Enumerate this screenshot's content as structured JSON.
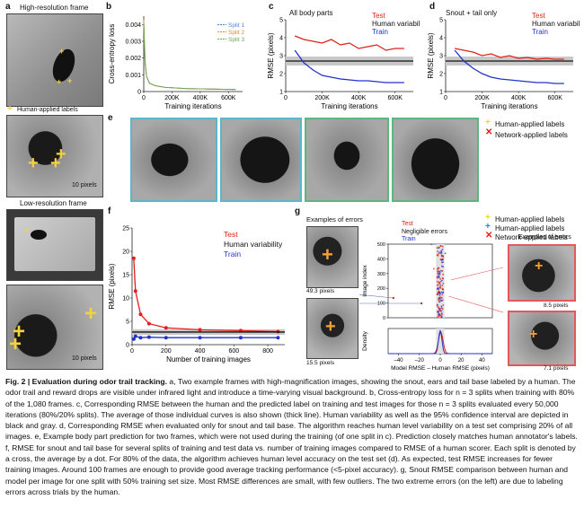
{
  "panel_a": {
    "letter": "a",
    "title_high": "High-resolution frame",
    "legend_human": "Human-applied labels",
    "scale_label_high": "10 pixels",
    "title_low": "Low-resolution frame",
    "scale_label_low": "10 pixels"
  },
  "panel_b": {
    "letter": "b"
  },
  "panel_c": {
    "letter": "c",
    "subtitle": "All body parts"
  },
  "panel_d": {
    "letter": "d",
    "subtitle": "Snout + tail only"
  },
  "panel_e": {
    "letter": "e",
    "legend_human": "Human-applied labels",
    "legend_network": "Network-applied labels"
  },
  "panel_f": {
    "letter": "f"
  },
  "panel_g": {
    "letter": "g",
    "examples_left": "Examples of errors",
    "examples_right": "Examples of errors",
    "err1": "49.3 pixels",
    "err2": "15.5 pixels",
    "err3": "8.5 pixels",
    "err4": "7.1 pixels",
    "legend_test": "Test",
    "legend_negligible": "Negligible errors",
    "legend_train": "Train",
    "ylabel_top": "Image index",
    "ylabel_bottom": "Density",
    "xlabel": "Model RMSE – Human RMSE (pixels)"
  },
  "legend_right": {
    "human": "Human-applied labels",
    "human2": "Human-applied labels",
    "network": "Network-applied labels"
  },
  "caption": {
    "heading": "Fig. 2 | Evaluation during odor trail tracking.",
    "body": " a, Two example frames with high-magnification images, showing the snout, ears and tail base labeled by a human. The odor trail and reward drops are visible under infrared light and introduce a time-varying visual background. b, Cross-entropy loss for n = 3 splits when training with 80% of the 1,080 frames. c, Corresponding RMSE between the human and the predicted label on training and test images for those n = 3 splits evaluated every 50,000 iterations (80%/20% splits). The average of those individual curves is also shown (thick line). Human variability as well as the 95% confidence interval are depicted in black and gray. d, Corresponding RMSE when evaluated only for snout and tail base. The algorithm reaches human level variability on a test set comprising 20% of all images. e, Example body part prediction for two frames, which were not used during the training (of one split in c). Prediction closely matches human annotator's labels. f, RMSE for snout and tail base for several splits of training and test data vs. number of training images compared to RMSE of a human scorer. Each split is denoted by a cross, the average by a dot. For 80% of the data, the algorithm achieves human level accuracy on the test set (d). As expected, test RMSE increases for fewer training images. Around 100 frames are enough to provide good average tracking performance (<5-pixel accuracy). g, Snout RMSE comparison between human and model per image for one split with 50% training set size. Most RMSE differences are small, with few outliers. The two extreme errors (on the left) are due to labeling errors across trials by the human."
  },
  "chart_data": [
    {
      "id": "b",
      "type": "line",
      "xlabel": "Training iterations",
      "ylabel": "Cross-entropy loss",
      "xlim": [
        0,
        700000
      ],
      "ylim": [
        0,
        0.0045
      ],
      "xticks": [
        "0",
        "200K",
        "400K",
        "600K"
      ],
      "yticks": [
        "0",
        "0.001",
        "0.002",
        "0.003",
        "0.004"
      ],
      "series": [
        {
          "name": "Split 1",
          "color": "#4f7fd8",
          "x": [
            0,
            5000,
            10000,
            20000,
            40000,
            80000,
            150000,
            300000,
            650000
          ],
          "y": [
            0.0042,
            0.0028,
            0.0017,
            0.0009,
            0.0005,
            0.00035,
            0.00025,
            0.00018,
            0.00012
          ]
        },
        {
          "name": "Split 2",
          "color": "#e08a2a",
          "x": [
            0,
            5000,
            10000,
            20000,
            40000,
            80000,
            150000,
            300000,
            650000
          ],
          "y": [
            0.0043,
            0.0029,
            0.0018,
            0.0009,
            0.0005,
            0.00035,
            0.00025,
            0.00018,
            0.00012
          ]
        },
        {
          "name": "Split 3",
          "color": "#6aa84f",
          "x": [
            0,
            5000,
            10000,
            20000,
            40000,
            80000,
            150000,
            300000,
            650000
          ],
          "y": [
            0.0041,
            0.0027,
            0.0016,
            0.0009,
            0.0005,
            0.00035,
            0.00025,
            0.00018,
            0.00012
          ]
        }
      ]
    },
    {
      "id": "c",
      "type": "line",
      "xlabel": "Training iterations",
      "ylabel": "RMSE (pixels)",
      "xlim": [
        0,
        700000
      ],
      "ylim": [
        1,
        5
      ],
      "xticks": [
        "0",
        "200K",
        "400K",
        "600K"
      ],
      "yticks": [
        "1",
        "2",
        "3",
        "4",
        "5"
      ],
      "human_variability": 2.7,
      "series": [
        {
          "name": "Test",
          "color": "#e0201b",
          "x": [
            50000,
            100000,
            150000,
            200000,
            250000,
            300000,
            350000,
            400000,
            450000,
            500000,
            550000,
            600000,
            650000
          ],
          "y": [
            4.1,
            3.9,
            3.8,
            3.7,
            3.9,
            3.6,
            3.7,
            3.4,
            3.5,
            3.6,
            3.3,
            3.4,
            3.4
          ]
        },
        {
          "name": "Human variability",
          "color": "#111111",
          "x": [
            0,
            700000
          ],
          "y": [
            2.7,
            2.7
          ]
        },
        {
          "name": "Train",
          "color": "#2233cc",
          "x": [
            50000,
            100000,
            150000,
            200000,
            250000,
            300000,
            350000,
            400000,
            450000,
            500000,
            550000,
            600000,
            650000
          ],
          "y": [
            3.3,
            2.6,
            2.2,
            1.9,
            1.8,
            1.7,
            1.65,
            1.6,
            1.6,
            1.55,
            1.5,
            1.5,
            1.5
          ]
        }
      ]
    },
    {
      "id": "d",
      "type": "line",
      "xlabel": "Training iterations",
      "ylabel": "RMSE (pixels)",
      "xlim": [
        0,
        700000
      ],
      "ylim": [
        1,
        5
      ],
      "xticks": [
        "0",
        "200K",
        "400K",
        "600K"
      ],
      "yticks": [
        "1",
        "2",
        "3",
        "4",
        "5"
      ],
      "human_variability": 2.7,
      "series": [
        {
          "name": "Test",
          "color": "#e0201b",
          "x": [
            50000,
            100000,
            150000,
            200000,
            250000,
            300000,
            350000,
            400000,
            450000,
            500000,
            550000,
            600000,
            650000
          ],
          "y": [
            3.4,
            3.3,
            3.2,
            3.0,
            3.1,
            2.9,
            3.0,
            2.85,
            2.9,
            2.8,
            2.85,
            2.8,
            2.8
          ]
        },
        {
          "name": "Human variability",
          "color": "#111111",
          "x": [
            0,
            700000
          ],
          "y": [
            2.7,
            2.7
          ]
        },
        {
          "name": "Train",
          "color": "#2233cc",
          "x": [
            50000,
            100000,
            150000,
            200000,
            250000,
            300000,
            350000,
            400000,
            450000,
            500000,
            550000,
            600000,
            650000
          ],
          "y": [
            3.3,
            2.7,
            2.3,
            2.0,
            1.8,
            1.7,
            1.65,
            1.6,
            1.55,
            1.5,
            1.5,
            1.45,
            1.45
          ]
        }
      ]
    },
    {
      "id": "f",
      "type": "line",
      "xlabel": "Number of training images",
      "ylabel": "RMSE (pixels)",
      "xlim": [
        0,
        900
      ],
      "ylim": [
        0,
        25
      ],
      "xticks": [
        "0",
        "200",
        "400",
        "600",
        "800"
      ],
      "yticks": [
        "0",
        "5",
        "10",
        "15",
        "20",
        "25"
      ],
      "human_variability": 2.7,
      "series": [
        {
          "name": "Test",
          "color": "#e0201b",
          "x": [
            10,
            20,
            50,
            100,
            200,
            400,
            640,
            860
          ],
          "y": [
            18.5,
            11.5,
            6.5,
            4.5,
            3.6,
            3.2,
            3.0,
            2.8
          ]
        },
        {
          "name": "Human variability",
          "color": "#111111",
          "x": [
            0,
            900
          ],
          "y": [
            2.7,
            2.7
          ]
        },
        {
          "name": "Train",
          "color": "#2233cc",
          "x": [
            10,
            20,
            50,
            100,
            200,
            400,
            640,
            860
          ],
          "y": [
            1.2,
            1.8,
            1.5,
            1.6,
            1.5,
            1.5,
            1.5,
            1.5
          ]
        }
      ]
    },
    {
      "id": "g",
      "type": "scatter",
      "xlabel": "Model RMSE – Human RMSE (pixels)",
      "ylabel": "Image index",
      "xlim": [
        -50,
        50
      ],
      "xticks": [
        "–40",
        "–20",
        "0",
        "20",
        "40"
      ],
      "yticks_top": [
        "0",
        "100",
        "200",
        "300",
        "400",
        "500"
      ],
      "ylim_top": [
        0,
        500
      ],
      "series": [
        {
          "name": "Test",
          "color": "#e0201b"
        },
        {
          "name": "Negligible errors",
          "color": "#999999"
        },
        {
          "name": "Train",
          "color": "#2233cc"
        }
      ]
    }
  ]
}
